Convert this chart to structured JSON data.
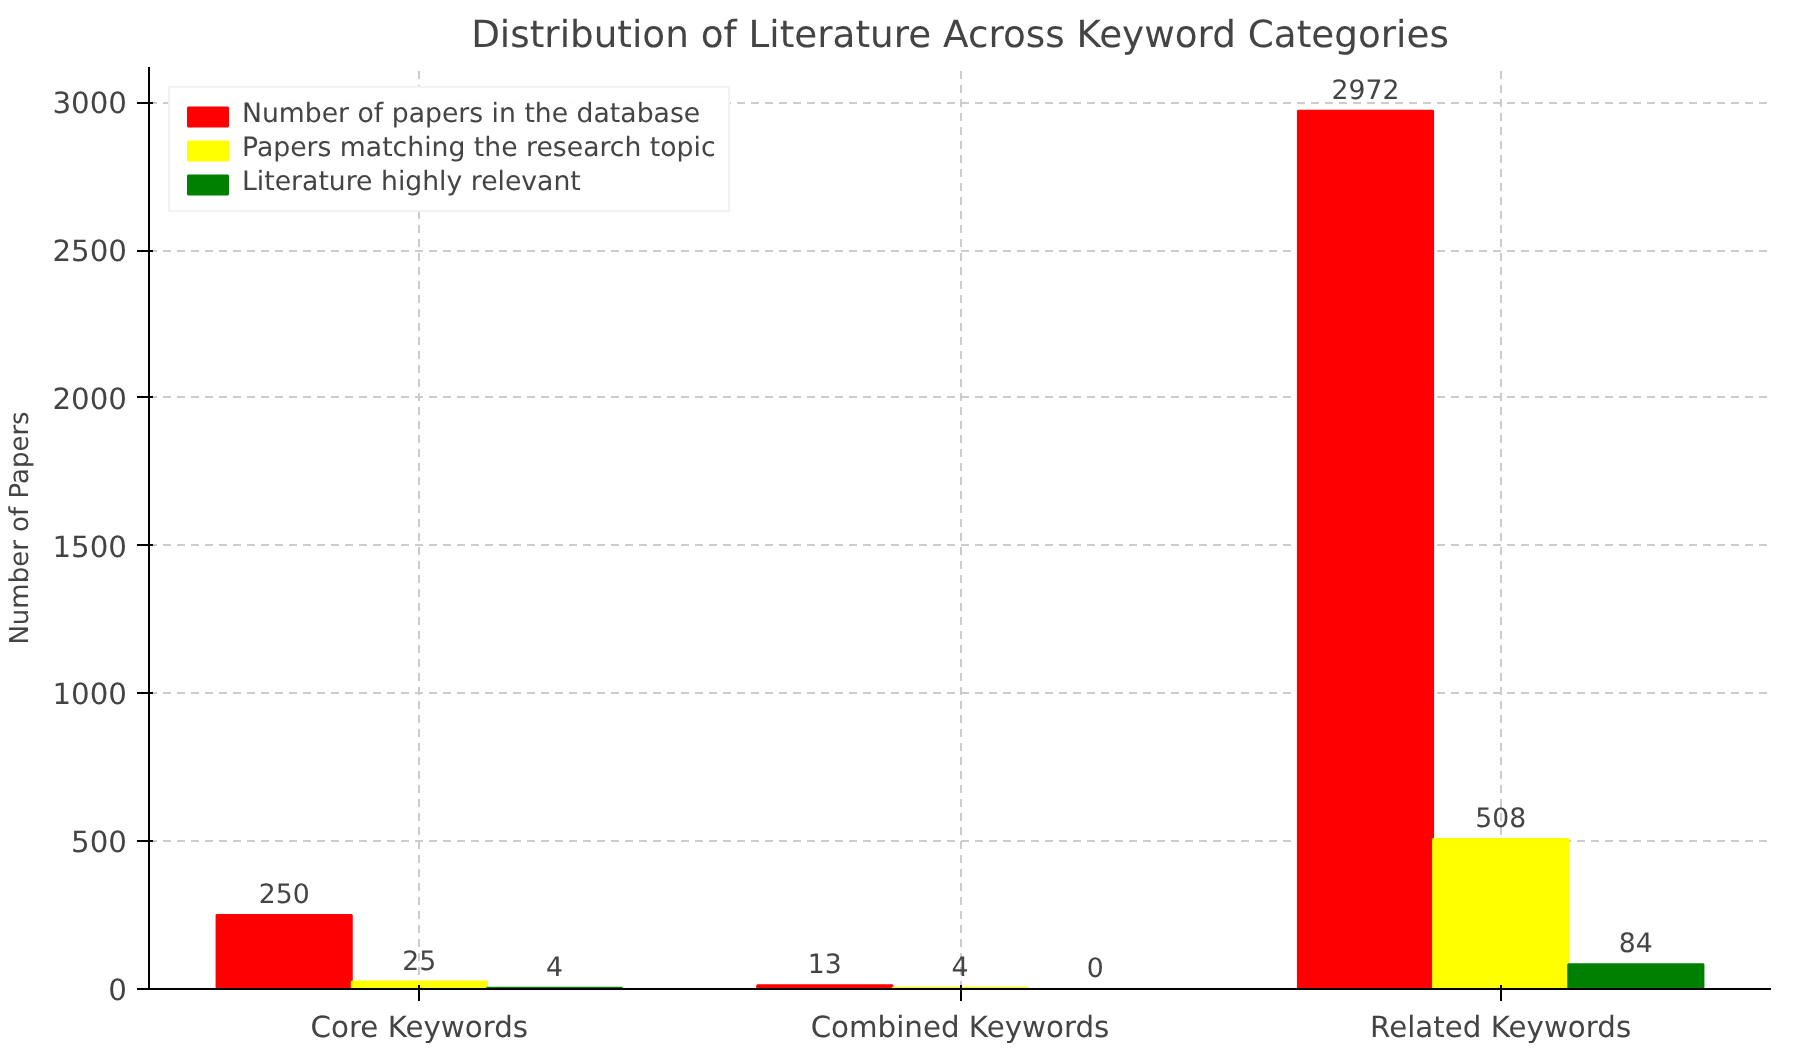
{
  "chart_data": {
    "type": "bar",
    "title": "Distribution of Literature Across Keyword Categories",
    "ylabel": "Number of Papers",
    "categories": [
      "Core Keywords",
      "Combined Keywords",
      "Related Keywords"
    ],
    "series": [
      {
        "name": "Number of papers in the database",
        "color": "#ff0000",
        "values": [
          250,
          13,
          2972
        ]
      },
      {
        "name": "Papers matching the research topic",
        "color": "#ffff00",
        "values": [
          25,
          4,
          508
        ]
      },
      {
        "name": "Literature highly relevant",
        "color": "#008000",
        "values": [
          4,
          0,
          84
        ]
      }
    ],
    "ylim": [
      0,
      3120
    ],
    "yticks": [
      0,
      500,
      1000,
      1500,
      2000,
      2500,
      3000
    ],
    "grid": true,
    "legend": "top left",
    "data_labels": true
  }
}
